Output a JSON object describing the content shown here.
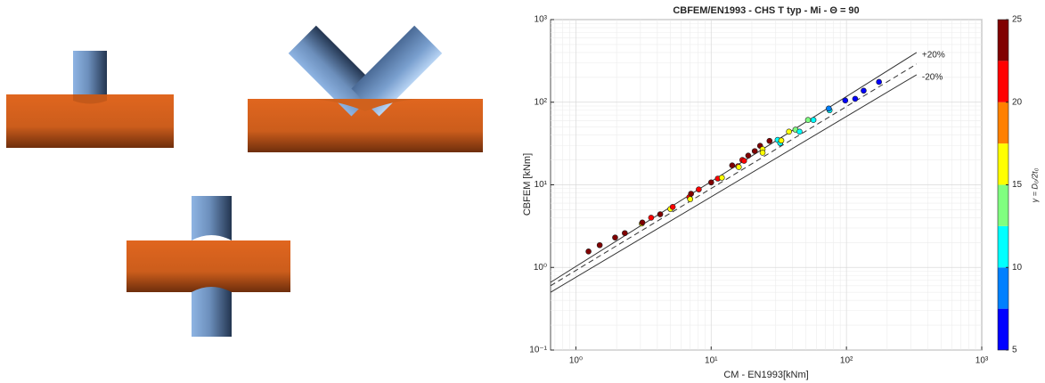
{
  "chart_data": {
    "type": "scatter",
    "title": "CBFEM/EN1993 - CHS T typ - Mi - Θ = 90",
    "x_label": "CM - EN1993[kNm]",
    "y_label": "CBFEM [kNm]",
    "color_label": "γ = D₀/2t₀",
    "log_x": true,
    "log_y": true,
    "grid": true,
    "minor_grid": true,
    "xlim": [
      0.65,
      1000
    ],
    "ylim": [
      0.1,
      1000
    ],
    "xticks": [
      {
        "value": 1,
        "label": "10⁰"
      },
      {
        "value": 10,
        "label": "10¹"
      },
      {
        "value": 100,
        "label": "10²"
      },
      {
        "value": 1000,
        "label": "10³"
      }
    ],
    "yticks": [
      {
        "value": 0.1,
        "label": "10⁻¹"
      },
      {
        "value": 1,
        "label": "10⁰"
      },
      {
        "value": 10,
        "label": "10¹"
      },
      {
        "value": 100,
        "label": "10²"
      },
      {
        "value": 1000,
        "label": "10³"
      }
    ],
    "clim": [
      5,
      25
    ],
    "cticks": [
      5,
      10,
      15,
      20,
      25
    ],
    "colormap": [
      "#0000ff",
      "#0080ff",
      "#00ffff",
      "#80ff80",
      "#ffff00",
      "#ff8000",
      "#ff0000",
      "#800000"
    ],
    "x": [
      1.24,
      1.5,
      1.95,
      2.3,
      3.07,
      3.1,
      3.6,
      4.2,
      5.0,
      5.2,
      6.9,
      7.1,
      7.0,
      8.1,
      10,
      11.2,
      12,
      14.3,
      15.8,
      16,
      17,
      17.5,
      18.8,
      21,
      23,
      24,
      24,
      27,
      31,
      32.4,
      33,
      37.6,
      42,
      45,
      52,
      57,
      75,
      74,
      98,
      116,
      134,
      174
    ],
    "y": [
      1.56,
      1.86,
      2.3,
      2.6,
      3.4,
      3.5,
      4.0,
      4.4,
      5.1,
      5.4,
      7.1,
      7.8,
      6.7,
      8.8,
      10.7,
      11.9,
      12.2,
      17.2,
      16.8,
      16.4,
      20,
      19.5,
      22.6,
      25.6,
      29.7,
      27,
      24.5,
      34,
      35,
      32,
      34.4,
      44,
      46.5,
      44,
      61,
      61,
      80,
      84,
      105,
      110,
      138,
      176
    ],
    "c": [
      24,
      24,
      24,
      24,
      16,
      24,
      21,
      24,
      16,
      21,
      21,
      24,
      16,
      21,
      24,
      21,
      16,
      24,
      21,
      16,
      21,
      21,
      24,
      24,
      24,
      16,
      16,
      24,
      11,
      11,
      16,
      16,
      14,
      11,
      14,
      11,
      11,
      9,
      6,
      6,
      6,
      6
    ],
    "reference_lines": [
      {
        "label": "+20%",
        "style": "solid",
        "x": [
          0.65,
          330
        ],
        "y": [
          0.66,
          400
        ]
      },
      {
        "style": "dashed",
        "x": [
          0.65,
          330
        ],
        "y": [
          0.6,
          290
        ]
      },
      {
        "label": "-20%",
        "style": "solid",
        "x": [
          0.65,
          330
        ],
        "y": [
          0.5,
          215
        ]
      }
    ]
  }
}
